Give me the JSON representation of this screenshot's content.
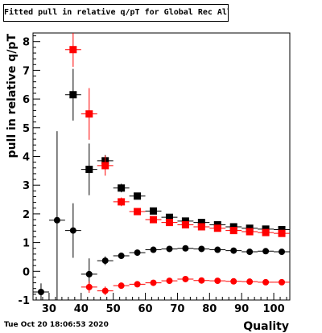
{
  "chart_data": {
    "type": "scatter",
    "title": "Fitted pull in relative q/pT for Global Rec All NoHits",
    "xlabel": "Quality",
    "ylabel": "pull in relative q/pT",
    "xlim": [
      25,
      105
    ],
    "ylim": [
      -1,
      8.3
    ],
    "xticks": [
      30,
      40,
      50,
      60,
      70,
      80,
      90,
      100
    ],
    "yticks": [
      -1,
      0,
      1,
      2,
      3,
      4,
      5,
      6,
      7,
      8
    ],
    "grid": false,
    "legend": false,
    "series": [
      {
        "marker": "square",
        "color": "#000000",
        "x": [
          37.5,
          42.5,
          47.5,
          52.5,
          57.5,
          62.5,
          67.5,
          72.5,
          77.5,
          82.5,
          87.5,
          92.5,
          97.5,
          102.5
        ],
        "y": [
          6.15,
          3.55,
          3.85,
          2.9,
          2.62,
          2.1,
          1.88,
          1.75,
          1.7,
          1.62,
          1.55,
          1.5,
          1.47,
          1.45
        ],
        "yerr": [
          0.9,
          0.9,
          0.2,
          0.15,
          0.1,
          0.08,
          0.07,
          0.06,
          0.06,
          0.05,
          0.05,
          0.05,
          0.05,
          0.05
        ]
      },
      {
        "marker": "square",
        "color": "#ff0000",
        "x": [
          37.5,
          42.5,
          47.5,
          52.5,
          57.5,
          62.5,
          67.5,
          72.5,
          77.5,
          82.5,
          87.5,
          92.5,
          97.5,
          102.5
        ],
        "y": [
          7.72,
          5.48,
          3.68,
          2.42,
          2.08,
          1.8,
          1.7,
          1.62,
          1.55,
          1.5,
          1.42,
          1.38,
          1.35,
          1.32
        ],
        "yerr": [
          0.6,
          0.9,
          0.35,
          0.15,
          0.08,
          0.07,
          0.06,
          0.05,
          0.05,
          0.05,
          0.05,
          0.05,
          0.05,
          0.05
        ]
      },
      {
        "marker": "circle",
        "color": "#000000",
        "x": [
          27.5,
          32.5,
          37.5,
          42.5,
          47.5,
          52.5,
          57.5,
          62.5,
          67.5,
          72.5,
          77.5,
          82.5,
          87.5,
          92.5,
          97.5,
          102.5
        ],
        "y": [
          -0.72,
          1.78,
          1.42,
          -0.1,
          0.37,
          0.54,
          0.65,
          0.75,
          0.78,
          0.8,
          0.78,
          0.75,
          0.72,
          0.68,
          0.7,
          0.68
        ],
        "yerr": [
          0.3,
          3.1,
          0.95,
          0.55,
          0.15,
          0.08,
          0.06,
          0.05,
          0.05,
          0.05,
          0.05,
          0.05,
          0.05,
          0.05,
          0.05,
          0.05
        ]
      },
      {
        "marker": "circle",
        "color": "#ff0000",
        "x": [
          42.5,
          47.5,
          52.5,
          57.5,
          62.5,
          67.5,
          72.5,
          77.5,
          82.5,
          87.5,
          92.5,
          97.5,
          102.5
        ],
        "y": [
          -0.55,
          -0.68,
          -0.5,
          -0.45,
          -0.4,
          -0.33,
          -0.27,
          -0.32,
          -0.33,
          -0.35,
          -0.36,
          -0.38,
          -0.38
        ],
        "yerr": [
          0.2,
          0.15,
          0.07,
          0.05,
          0.04,
          0.04,
          0.04,
          0.04,
          0.04,
          0.04,
          0.04,
          0.04,
          0.04
        ]
      }
    ]
  },
  "footer": {
    "timestamp": "Tue Oct 20 18:06:53 2020"
  }
}
